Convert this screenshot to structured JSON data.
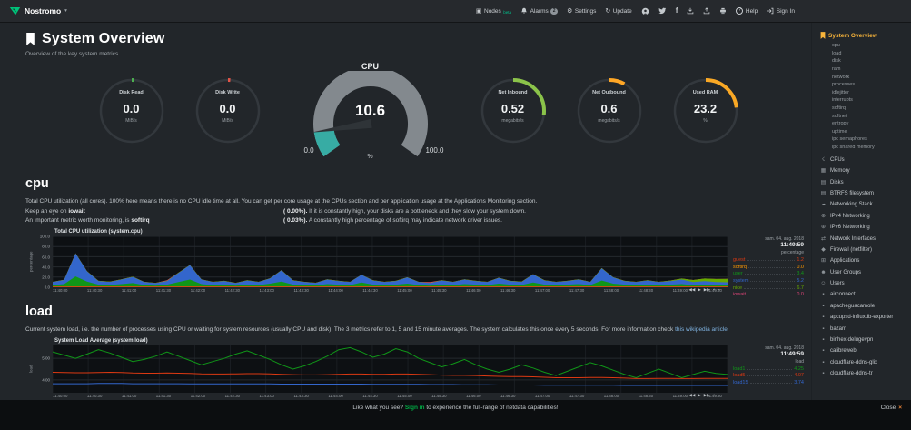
{
  "topbar": {
    "hostname": "Nostromo",
    "icons": {
      "nodes": "▣",
      "caret": "▾",
      "settings": "⚙",
      "update": "↻",
      "facebook": "f",
      "help": "?"
    },
    "nodes_label": "Nodes",
    "nodes_badge": "beta",
    "alarms_label": "Alarms",
    "alarms_count": "2",
    "settings_label": "Settings",
    "update_label": "Update",
    "help_label": "Help",
    "signin_label": "Sign In"
  },
  "header": {
    "title": "System Overview",
    "subtitle": "Overview of the key system metrics."
  },
  "gauges": [
    {
      "kind": "pie",
      "label": "Disk Read",
      "value": "0.0",
      "unit": "MiB/s",
      "frac": 0.012,
      "color": "#4caf50"
    },
    {
      "kind": "pie",
      "label": "Disk Write",
      "value": "0.0",
      "unit": "MiB/s",
      "frac": 0.012,
      "color": "#e25548"
    },
    {
      "kind": "gauge",
      "label": "CPU",
      "value": "10.6",
      "min": "0.0",
      "max": "100.0",
      "unit": "%",
      "frac": 0.106,
      "color": "#37aca4"
    },
    {
      "kind": "pie",
      "label": "Net Inbound",
      "value": "0.52",
      "unit": "megabits/s",
      "frac": 0.27,
      "color": "#8bc34a"
    },
    {
      "kind": "pie",
      "label": "Net Outbound",
      "value": "0.6",
      "unit": "megabits/s",
      "frac": 0.08,
      "color": "#ffa726"
    },
    {
      "kind": "pie",
      "label": "Used RAM",
      "value": "23.2",
      "unit": "%",
      "frac": 0.232,
      "color": "#f9a825"
    }
  ],
  "cpu_section": {
    "heading": "cpu",
    "para1": "Total CPU utilization (all cores). 100% here means there is no CPU idle time at all. You can get per core usage at the CPUs section and per application usage at the Applications Monitoring section.",
    "line2_pre": "Keep an eye on ",
    "line2_bold": "iowait",
    "line2_val": "( 0.00%).",
    "line2_post": " If it is constantly high, your disks are a bottleneck and they slow your system down.",
    "line3_pre": "An important metric worth monitoring, is ",
    "line3_bold": "softirq",
    "line3_val": "( 0.03%).",
    "line3_post": " A constantly high percentage of softirq may indicate network driver issues."
  },
  "load_section": {
    "heading": "load",
    "para_pre": "Current system load, i.e. the number of processes using CPU or waiting for system resources (usually CPU and disk). The 3 metrics refer to 1, 5 and 15 minute averages. The system calculates this once every 5 seconds. For more information check ",
    "para_link": "this wikipedia article"
  },
  "sidebar": {
    "active_label": "System Overview",
    "submenu": [
      "cpu",
      "load",
      "disk",
      "ram",
      "network",
      "processes",
      "idlejitter",
      "interrupts",
      "softirq",
      "softnet",
      "entropy",
      "uptime",
      "ipc semaphores",
      "ipc shared memory"
    ],
    "icon_glyphs": {
      "bolt": "☇",
      "chip": "▦",
      "disk": "▤",
      "cloud": "☁",
      "globe": "⊕",
      "exchange": "⇄",
      "shield": "◆",
      "apps": "⊞",
      "users": "☻",
      "user": "☺",
      "cube": "▪"
    },
    "sections": [
      {
        "icon": "bolt",
        "label": "CPUs"
      },
      {
        "icon": "chip",
        "label": "Memory"
      },
      {
        "icon": "disk",
        "label": "Disks"
      },
      {
        "icon": "disk",
        "label": "BTRFS filesystem"
      },
      {
        "icon": "cloud",
        "label": "Networking Stack"
      },
      {
        "icon": "globe",
        "label": "IPv4 Networking"
      },
      {
        "icon": "globe",
        "label": "IPv6 Networking"
      },
      {
        "icon": "exchange",
        "label": "Network Interfaces"
      },
      {
        "icon": "shield",
        "label": "Firewall (netfilter)"
      },
      {
        "icon": "apps",
        "label": "Applications"
      },
      {
        "icon": "users",
        "label": "User Groups"
      },
      {
        "icon": "user",
        "label": "Users"
      },
      {
        "icon": "cube",
        "label": "airconnect"
      },
      {
        "icon": "cube",
        "label": "apacheguacamole"
      },
      {
        "icon": "cube",
        "label": "apcupsd-influxdb-exporter"
      },
      {
        "icon": "cube",
        "label": "bazarr"
      },
      {
        "icon": "cube",
        "label": "binhex-delugevpn"
      },
      {
        "icon": "cube",
        "label": "calibreweb"
      },
      {
        "icon": "cube",
        "label": "cloudflare-ddns-glix"
      },
      {
        "icon": "cube",
        "label": "cloudflare-ddns-tr"
      }
    ]
  },
  "chart_controls": [
    {
      "name": "pan-backward",
      "glyph": "◀◀"
    },
    {
      "name": "play",
      "glyph": "▶"
    },
    {
      "name": "pan-forward",
      "glyph": "▶▶"
    },
    {
      "name": "zoom-in",
      "glyph": "+"
    },
    {
      "name": "zoom-out",
      "glyph": "−"
    }
  ],
  "chart_data": [
    {
      "id": "cpu_chart",
      "type": "area",
      "title": "Total CPU utilization (system.cpu)",
      "ylabel": "percentage",
      "unit": "percentage",
      "date": "sam. 04. aug. 2018",
      "time": "11:49:59",
      "ylim": [
        0,
        100
      ],
      "yticks": [
        "100.0",
        "80.0",
        "60.0",
        "40.0",
        "20.0",
        "0.0"
      ],
      "xticks": [
        "11:40:00",
        "11:40:30",
        "11:41:00",
        "11:41:30",
        "11:42:00",
        "11:42:30",
        "11:43:00",
        "11:43:30",
        "11:44:00",
        "11:44:30",
        "11:45:00",
        "11:45:30",
        "11:46:00",
        "11:46:30",
        "11:47:00",
        "11:47:30",
        "11:48:00",
        "11:48:30",
        "11:49:00",
        "11:49:30"
      ],
      "series": [
        {
          "name": "guest",
          "value": "1.2",
          "color": "#DC3912",
          "values": [
            1.2,
            1.2,
            1.2,
            1.2,
            1.2,
            1.2,
            1.2,
            1.2,
            1.2,
            1.2,
            1.2,
            1.2,
            1.2,
            1.2,
            1.2,
            1.2,
            1.2,
            1.2,
            1.2,
            1.2,
            1.2,
            1.2,
            1.2,
            1.2,
            1.2,
            1.2,
            1.2,
            1.2,
            1.2,
            1.2,
            1.2,
            1.2,
            1.2,
            1.2,
            1.2,
            1.2,
            1.2,
            1.2,
            1.2,
            1.2,
            1.2,
            1.2,
            1.2,
            1.2,
            1.2,
            1.2,
            1.2,
            1.2,
            1.2,
            1.2,
            1.2,
            1.2,
            1.2,
            1.2,
            1.2,
            1.2,
            1.2,
            1.2,
            1.2,
            1.2
          ]
        },
        {
          "name": "softirq",
          "value": "0.0",
          "color": "#FF9900",
          "values": [
            0,
            0,
            0,
            0,
            0,
            0.3,
            0,
            0,
            0,
            0,
            0,
            0,
            0,
            0,
            0,
            0,
            0,
            0,
            0,
            0,
            0,
            0,
            0,
            0.3,
            0,
            0,
            0,
            0,
            0,
            0,
            0,
            0,
            0,
            0,
            0,
            0,
            0,
            0,
            0,
            0,
            0,
            0.3,
            0,
            0,
            0,
            0,
            0,
            0,
            0,
            0,
            0,
            0,
            0,
            0,
            0,
            0,
            0,
            0,
            0,
            0
          ]
        },
        {
          "name": "user",
          "value": "3.4",
          "color": "#109618",
          "values": [
            3,
            5,
            20,
            10,
            4,
            3,
            5,
            7,
            3,
            2,
            4,
            9,
            14,
            5,
            3,
            4,
            2,
            4,
            3,
            6,
            10,
            4,
            3,
            2,
            5,
            4,
            3,
            8,
            4,
            3,
            4,
            6,
            3,
            2,
            4,
            3,
            5,
            4,
            3,
            6,
            4,
            3,
            8,
            4,
            3,
            4,
            5,
            3,
            12,
            6,
            4,
            3,
            4,
            3,
            4,
            5,
            3,
            4,
            3,
            3.4
          ]
        },
        {
          "name": "system",
          "value": "5.2",
          "color": "#3366CC",
          "values": [
            6,
            8,
            45,
            20,
            7,
            6,
            9,
            12,
            6,
            5,
            7,
            18,
            28,
            9,
            6,
            7,
            5,
            8,
            6,
            10,
            22,
            8,
            6,
            5,
            9,
            7,
            6,
            15,
            8,
            6,
            7,
            12,
            6,
            5,
            8,
            6,
            9,
            7,
            6,
            11,
            7,
            6,
            16,
            8,
            6,
            7,
            9,
            6,
            24,
            12,
            7,
            6,
            8,
            6,
            7,
            9,
            6,
            7,
            6,
            5.2
          ]
        },
        {
          "name": "nice",
          "value": "6.7",
          "color": "#66AA00",
          "values": [
            0.5,
            0.5,
            0.5,
            0.5,
            0.5,
            0.5,
            0.5,
            0.5,
            0.5,
            0.5,
            0.5,
            0.5,
            0.5,
            0.5,
            0.5,
            0.5,
            0.5,
            0.5,
            0.5,
            0.5,
            0.5,
            0.5,
            0.5,
            0.5,
            0.5,
            0.5,
            0.5,
            0.5,
            0.5,
            0.5,
            0.5,
            0.5,
            0.5,
            0.5,
            0.5,
            0.5,
            0.5,
            0.5,
            0.5,
            0.5,
            0.5,
            0.5,
            0.5,
            0.5,
            0.5,
            0.5,
            0.5,
            0.5,
            0.5,
            0.5,
            0.5,
            0.5,
            0.5,
            0.5,
            1,
            2,
            4,
            5,
            6,
            6.7
          ]
        },
        {
          "name": "iowait",
          "value": "0.0",
          "color": "#DD4477",
          "values": [
            0,
            0,
            0,
            0,
            0,
            0,
            0,
            0,
            0,
            0,
            1,
            0,
            0,
            0,
            0,
            0,
            0,
            0,
            0,
            0,
            0,
            0,
            0,
            0,
            0,
            0,
            0,
            0,
            0,
            0,
            0,
            0,
            0,
            1.5,
            0,
            0,
            0,
            0,
            0,
            0,
            0,
            0,
            0,
            0,
            0,
            0,
            0,
            0,
            0,
            0,
            0,
            0,
            0,
            0,
            0,
            0,
            0,
            0,
            0,
            0
          ]
        }
      ]
    },
    {
      "id": "load_chart",
      "type": "line",
      "title": "System Load Average (system.load)",
      "ylabel": "load",
      "unit": "load",
      "date": "sam. 04. aug. 2018",
      "time": "11:49:59",
      "ylim": [
        3.4,
        5.6
      ],
      "yticks": [
        "5.00",
        "4.00"
      ],
      "xticks": [
        "11:40:00",
        "11:40:30",
        "11:41:00",
        "11:41:30",
        "11:42:00",
        "11:42:30",
        "11:43:00",
        "11:43:30",
        "11:44:00",
        "11:44:30",
        "11:45:00",
        "11:45:30",
        "11:46:00",
        "11:46:30",
        "11:47:00",
        "11:47:30",
        "11:48:00",
        "11:48:30",
        "11:49:00",
        "11:49:30"
      ],
      "series": [
        {
          "name": "load1",
          "value": "4.25",
          "color": "#109618",
          "values": [
            5.3,
            5.15,
            5.0,
            5.2,
            5.4,
            5.25,
            5.05,
            4.85,
            4.95,
            5.1,
            5.3,
            5.1,
            4.9,
            4.7,
            4.85,
            5.0,
            5.2,
            5.35,
            5.15,
            4.95,
            4.7,
            4.5,
            4.65,
            4.85,
            5.1,
            5.4,
            5.5,
            5.3,
            5.05,
            5.2,
            5.45,
            5.3,
            5.0,
            4.8,
            4.6,
            4.75,
            4.95,
            4.7,
            4.5,
            4.35,
            4.5,
            4.7,
            4.55,
            4.35,
            4.2,
            4.4,
            4.6,
            4.8,
            4.65,
            4.45,
            4.25,
            4.1,
            4.3,
            4.5,
            4.3,
            4.1,
            4.25,
            4.4,
            4.3,
            4.25
          ]
        },
        {
          "name": "load5",
          "value": "4.07",
          "color": "#DC3912",
          "values": [
            4.35,
            4.34,
            4.33,
            4.33,
            4.34,
            4.35,
            4.34,
            4.32,
            4.31,
            4.31,
            4.32,
            4.31,
            4.3,
            4.28,
            4.27,
            4.27,
            4.28,
            4.29,
            4.29,
            4.28,
            4.26,
            4.24,
            4.23,
            4.23,
            4.24,
            4.26,
            4.27,
            4.27,
            4.26,
            4.26,
            4.27,
            4.27,
            4.26,
            4.24,
            4.22,
            4.21,
            4.21,
            4.2,
            4.18,
            4.16,
            4.15,
            4.15,
            4.14,
            4.12,
            4.1,
            4.1,
            4.1,
            4.11,
            4.11,
            4.1,
            4.08,
            4.06,
            4.06,
            4.07,
            4.07,
            4.06,
            4.06,
            4.07,
            4.07,
            4.07
          ]
        },
        {
          "name": "load15",
          "value": "3.74",
          "color": "#3366CC",
          "values": [
            3.82,
            3.82,
            3.82,
            3.82,
            3.83,
            3.83,
            3.83,
            3.82,
            3.82,
            3.82,
            3.82,
            3.82,
            3.81,
            3.81,
            3.81,
            3.81,
            3.81,
            3.81,
            3.81,
            3.81,
            3.8,
            3.8,
            3.8,
            3.8,
            3.8,
            3.8,
            3.8,
            3.8,
            3.79,
            3.79,
            3.79,
            3.79,
            3.79,
            3.78,
            3.78,
            3.78,
            3.77,
            3.77,
            3.77,
            3.76,
            3.76,
            3.76,
            3.76,
            3.75,
            3.75,
            3.75,
            3.75,
            3.75,
            3.75,
            3.75,
            3.74,
            3.74,
            3.74,
            3.74,
            3.74,
            3.74,
            3.74,
            3.74,
            3.74,
            3.74
          ]
        }
      ]
    }
  ],
  "bottombar": {
    "text_pre": "Like what you see? ",
    "text_link": "Sign in",
    "text_post": " to experience the full-range of netdata capabilities!",
    "close_label": "Close",
    "close_icon": "×"
  },
  "colors": {
    "accent_green": "#00ab44",
    "sidebar_active": "#f8b43a",
    "gauge_cpu": "#37aca4",
    "ram_arc": "#f9a825"
  }
}
